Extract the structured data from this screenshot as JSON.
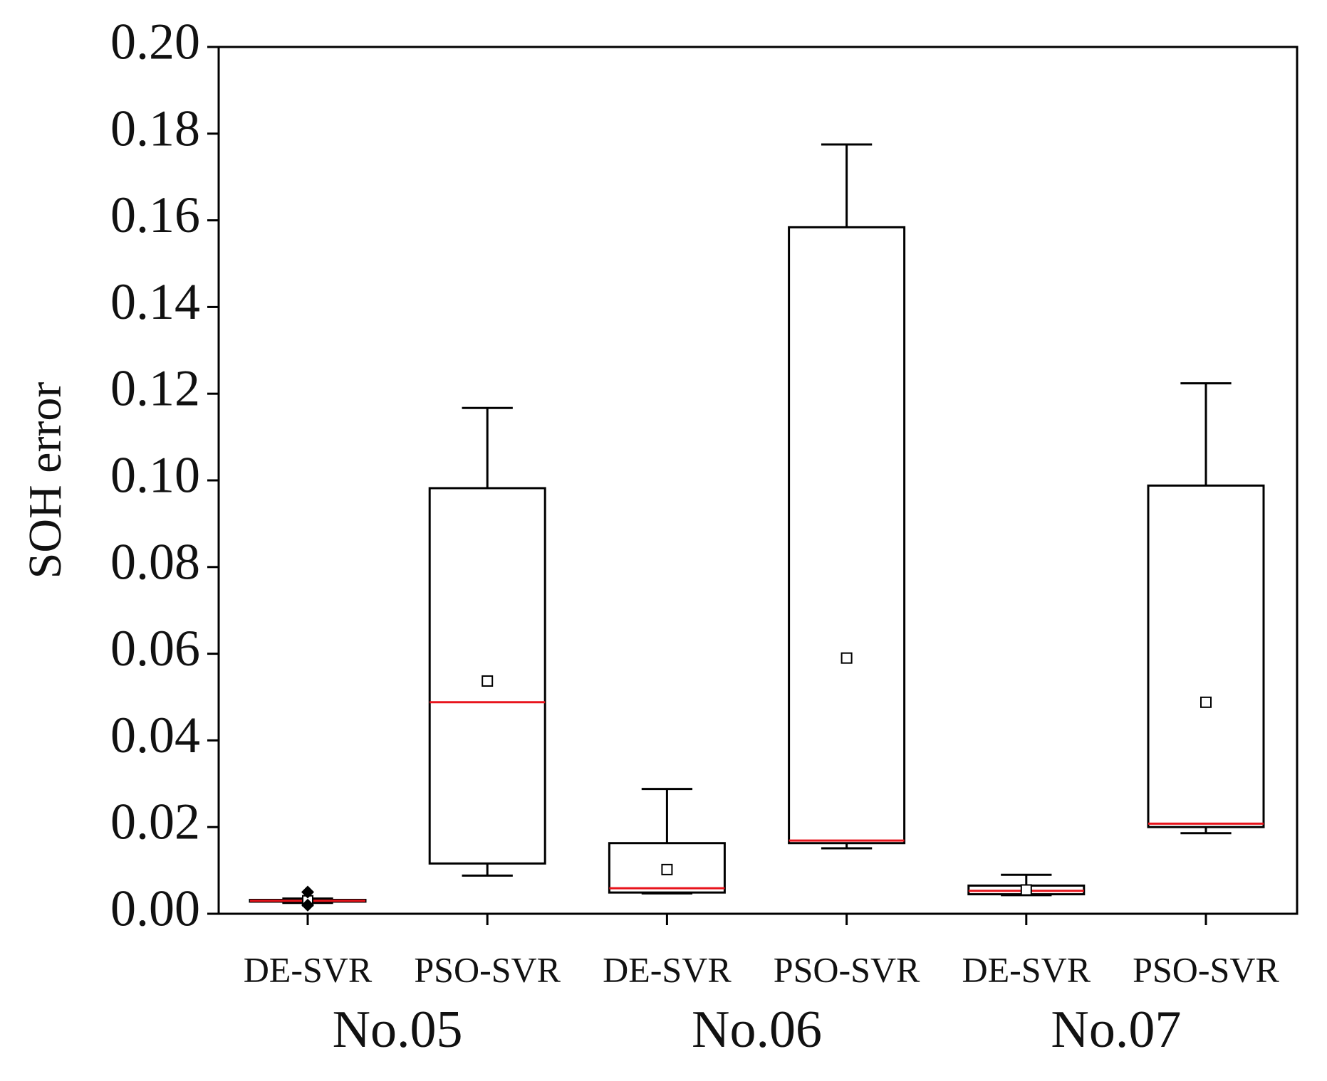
{
  "chart_data": {
    "type": "box",
    "y_label": "SOH error",
    "categories": [
      "DE-SVR",
      "PSO-SVR",
      "DE-SVR",
      "PSO-SVR",
      "DE-SVR",
      "PSO-SVR"
    ],
    "groups": [
      "No.05",
      "No.06",
      "No.07"
    ],
    "boxes": [
      {
        "whisker_low": 0.0025,
        "q1": 0.0028,
        "median": 0.003,
        "q3": 0.0032,
        "whisker_high": 0.0035,
        "mean": 0.003,
        "outliers": [
          0.005,
          0.002
        ]
      },
      {
        "whisker_low": 0.0088,
        "q1": 0.0116,
        "median": 0.0488,
        "q3": 0.0982,
        "whisker_high": 0.1167,
        "mean": 0.0537
      },
      {
        "whisker_low": 0.0047,
        "q1": 0.0049,
        "median": 0.0059,
        "q3": 0.0163,
        "whisker_high": 0.0288,
        "mean": 0.0102
      },
      {
        "whisker_low": 0.0151,
        "q1": 0.0163,
        "median": 0.0169,
        "q3": 0.1584,
        "whisker_high": 0.1775,
        "mean": 0.059
      },
      {
        "whisker_low": 0.0043,
        "q1": 0.0045,
        "median": 0.0053,
        "q3": 0.0065,
        "whisker_high": 0.009,
        "mean": 0.0055
      },
      {
        "whisker_low": 0.0186,
        "q1": 0.02,
        "median": 0.0208,
        "q3": 0.0988,
        "whisker_high": 0.1224,
        "mean": 0.0488
      }
    ],
    "ylim": [
      0,
      0.2
    ],
    "yticks": [
      {
        "value": 0,
        "label": "0.00"
      },
      {
        "value": 0.02,
        "label": "0.02"
      },
      {
        "value": 0.04,
        "label": "0.04"
      },
      {
        "value": 0.06,
        "label": "0.06"
      },
      {
        "value": 0.08,
        "label": "0.08"
      },
      {
        "value": 0.1,
        "label": "0.10"
      },
      {
        "value": 0.12,
        "label": "0.12"
      },
      {
        "value": 0.14,
        "label": "0.14"
      },
      {
        "value": 0.16,
        "label": "0.16"
      },
      {
        "value": 0.18,
        "label": "0.18"
      },
      {
        "value": 0.2,
        "label": "0.20"
      }
    ],
    "box_color": "#000000",
    "median_color": "#e8141c",
    "grid": false
  }
}
